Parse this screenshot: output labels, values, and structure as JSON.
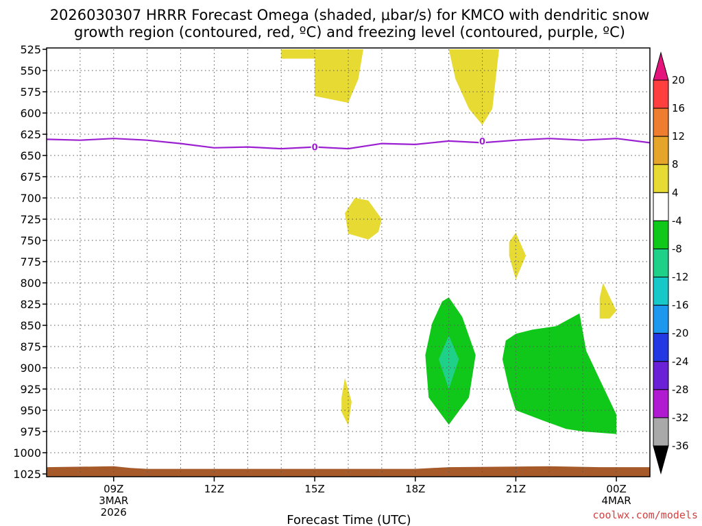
{
  "chart_data": {
    "type": "time-height contour",
    "title_line1": "2026030307 HRRR Forecast Omega (shaded, μbar/s) for KMCO with dendritic snow",
    "title_line2": "growth region (contoured, red, ºC) and freezing level (contoured, purple, ºC)",
    "xlabel": "Forecast Time (UTC)",
    "credit": "coolwx.com/models",
    "x_range_hours": [
      7,
      25
    ],
    "y_range_mb": [
      525,
      1025
    ],
    "pressure_levels": [
      525,
      550,
      575,
      600,
      625,
      650,
      675,
      700,
      725,
      750,
      775,
      800,
      825,
      850,
      875,
      900,
      925,
      950,
      975,
      1000,
      1025
    ],
    "x_ticks": [
      {
        "hour": 9,
        "label": "09Z",
        "sub1": "3MAR",
        "sub2": "2026"
      },
      {
        "hour": 12,
        "label": "12Z",
        "sub1": "",
        "sub2": ""
      },
      {
        "hour": 15,
        "label": "15Z",
        "sub1": "",
        "sub2": ""
      },
      {
        "hour": 18,
        "label": "18Z",
        "sub1": "",
        "sub2": ""
      },
      {
        "hour": 21,
        "label": "21Z",
        "sub1": "",
        "sub2": ""
      },
      {
        "hour": 24,
        "label": "00Z",
        "sub1": "4MAR",
        "sub2": ""
      }
    ],
    "colorbar": {
      "ticks": [
        "20",
        "16",
        "12",
        "8",
        "4",
        "-4",
        "-8",
        "-12",
        "-16",
        "-20",
        "-24",
        "-28",
        "-32",
        "-36"
      ],
      "bins": [
        {
          "range": "16-20",
          "color": "#ff3e3e"
        },
        {
          "range": "12-16",
          "color": "#ee7d2f"
        },
        {
          "range": "8-12",
          "color": "#e5a42a"
        },
        {
          "range": "4-8",
          "color": "#e6da33"
        },
        {
          "range": "-4-4",
          "color": "#ffffff"
        },
        {
          "range": "-8--4",
          "color": "#10c81a"
        },
        {
          "range": "-12--8",
          "color": "#1fd188"
        },
        {
          "range": "-16--12",
          "color": "#16c8c8"
        },
        {
          "range": "-20--16",
          "color": "#1c98ee"
        },
        {
          "range": "-24--20",
          "color": "#2238e3"
        },
        {
          "range": "-28--24",
          "color": "#6a20d6"
        },
        {
          "range": "-32--28",
          "color": "#b01ad1"
        },
        {
          "range": "-36--32",
          "color": "#a9a9a9"
        }
      ],
      "top_triangle_color": "#e5147d",
      "bottom_triangle_color": "#000000"
    },
    "freezing_level": {
      "color": "#9b1fd1",
      "label": "0",
      "label_points": [
        {
          "hour": 15,
          "mb": 640
        },
        {
          "hour": 20,
          "mb": 633
        }
      ],
      "points": [
        [
          7,
          631
        ],
        [
          8,
          632
        ],
        [
          9,
          630
        ],
        [
          10,
          632
        ],
        [
          11,
          636
        ],
        [
          12,
          641
        ],
        [
          13,
          640
        ],
        [
          14,
          642
        ],
        [
          15,
          640
        ],
        [
          16,
          642
        ],
        [
          17,
          636
        ],
        [
          18,
          637
        ],
        [
          19,
          633
        ],
        [
          20,
          635
        ],
        [
          21,
          632
        ],
        [
          22,
          630
        ],
        [
          23,
          632
        ],
        [
          24,
          630
        ],
        [
          25,
          635
        ]
      ]
    },
    "omega_regions": [
      {
        "name": "upward-motion-yellow-1",
        "value_range": "4-8",
        "color": "#e6da33",
        "points": [
          [
            14.0,
            525
          ],
          [
            15.0,
            525
          ],
          [
            16.45,
            525
          ],
          [
            16.3,
            560
          ],
          [
            16.0,
            588
          ],
          [
            15.0,
            580
          ],
          [
            15.0,
            536
          ],
          [
            14.0,
            536
          ]
        ]
      },
      {
        "name": "upward-motion-yellow-2",
        "value_range": "4-8",
        "color": "#e6da33",
        "points": [
          [
            19.0,
            525
          ],
          [
            20.5,
            525
          ],
          [
            20.4,
            560
          ],
          [
            20.3,
            595
          ],
          [
            20.0,
            614
          ],
          [
            19.6,
            595
          ],
          [
            19.2,
            560
          ]
        ]
      },
      {
        "name": "upward-motion-yellow-3",
        "value_range": "4-8",
        "color": "#e6da33",
        "points": [
          [
            16.6,
            703
          ],
          [
            17.0,
            725
          ],
          [
            16.9,
            740
          ],
          [
            16.6,
            749
          ],
          [
            16.0,
            742
          ],
          [
            15.9,
            718
          ],
          [
            16.2,
            700
          ]
        ]
      },
      {
        "name": "upward-motion-yellow-4",
        "value_range": "4-8",
        "color": "#e6da33",
        "points": [
          [
            21.0,
            741
          ],
          [
            21.3,
            768
          ],
          [
            21.0,
            796
          ],
          [
            20.8,
            768
          ],
          [
            20.8,
            752
          ]
        ]
      },
      {
        "name": "upward-motion-yellow-5",
        "value_range": "4-8",
        "color": "#e6da33",
        "points": [
          [
            23.6,
            800
          ],
          [
            24.0,
            833
          ],
          [
            23.8,
            842
          ],
          [
            23.5,
            842
          ],
          [
            23.5,
            818
          ]
        ]
      },
      {
        "name": "upward-motion-yellow-6",
        "value_range": "4-8",
        "color": "#e6da33",
        "points": [
          [
            15.9,
            912
          ],
          [
            16.1,
            940
          ],
          [
            16.0,
            968
          ],
          [
            15.8,
            952
          ],
          [
            15.8,
            935
          ]
        ]
      },
      {
        "name": "downward-motion-green-1",
        "value_range": "-8--4",
        "color": "#10c81a",
        "points": [
          [
            19.0,
            817
          ],
          [
            19.4,
            840
          ],
          [
            19.8,
            885
          ],
          [
            19.6,
            935
          ],
          [
            19.0,
            967
          ],
          [
            18.4,
            935
          ],
          [
            18.3,
            885
          ],
          [
            18.5,
            848
          ],
          [
            18.8,
            822
          ]
        ]
      },
      {
        "name": "downward-motion-teal-1",
        "value_range": "-12--8",
        "color": "#1fd188",
        "points": [
          [
            19.0,
            862
          ],
          [
            19.3,
            890
          ],
          [
            19.0,
            925
          ],
          [
            18.7,
            890
          ]
        ]
      },
      {
        "name": "downward-motion-green-2",
        "value_range": "-8--4",
        "color": "#10c81a",
        "points": [
          [
            22.9,
            836
          ],
          [
            23.1,
            880
          ],
          [
            23.6,
            922
          ],
          [
            24.0,
            955
          ],
          [
            24.0,
            978
          ],
          [
            23.0,
            975
          ],
          [
            22.5,
            972
          ],
          [
            21.8,
            962
          ],
          [
            21.0,
            950
          ],
          [
            20.8,
            925
          ],
          [
            20.6,
            890
          ],
          [
            20.7,
            868
          ],
          [
            21.0,
            860
          ],
          [
            21.5,
            855
          ],
          [
            22.2,
            851
          ]
        ]
      }
    ],
    "terrain": {
      "color": "#a65a2a",
      "points": [
        [
          7,
          1017
        ],
        [
          9,
          1016
        ],
        [
          9.5,
          1018
        ],
        [
          10,
          1019
        ],
        [
          12,
          1019
        ],
        [
          18,
          1019
        ],
        [
          19,
          1017
        ],
        [
          22,
          1016
        ],
        [
          23.5,
          1017
        ],
        [
          25,
          1017
        ]
      ]
    }
  }
}
